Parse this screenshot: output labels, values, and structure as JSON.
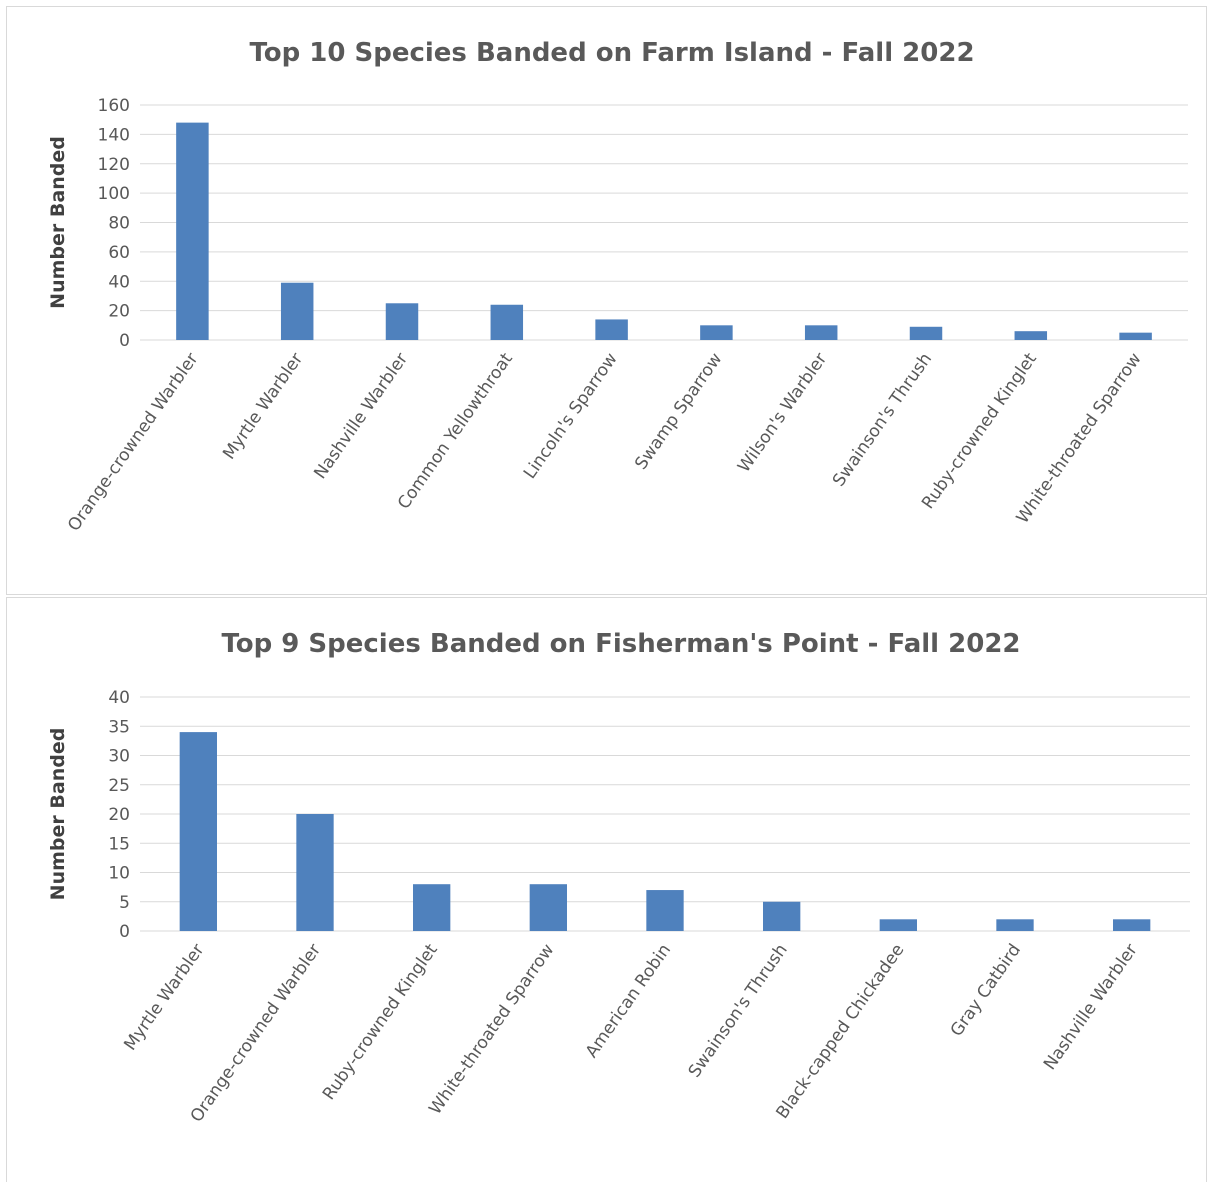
{
  "chart_data": [
    {
      "type": "bar",
      "title": "Top 10 Species Banded on Farm Island - Fall 2022",
      "xlabel": "",
      "ylabel": "Number Banded",
      "ylim": [
        0,
        160
      ],
      "yticks": [
        0,
        20,
        40,
        60,
        80,
        100,
        120,
        140,
        160
      ],
      "grid": true,
      "color": "#4f81bd",
      "categories": [
        "Orange-crowned Warbler",
        "Myrtle Warbler",
        "Nashville Warbler",
        "Common Yellowthroat",
        "Lincoln's Sparrow",
        "Swamp Sparrow",
        "Wilson's Warbler",
        "Swainson's Thrush",
        "Ruby-crowned Kinglet",
        "White-throated Sparrow"
      ],
      "values": [
        148,
        39,
        25,
        24,
        14,
        10,
        10,
        9,
        6,
        5
      ]
    },
    {
      "type": "bar",
      "title": "Top 9 Species Banded on Fisherman's Point - Fall 2022",
      "xlabel": "",
      "ylabel": "Number Banded",
      "ylim": [
        0,
        40
      ],
      "yticks": [
        0,
        5,
        10,
        15,
        20,
        25,
        30,
        35,
        40
      ],
      "grid": true,
      "color": "#4f81bd",
      "categories": [
        "Myrtle Warbler",
        "Orange-crowned Warbler",
        "Ruby-crowned Kinglet",
        "White-throated Sparrow",
        "American Robin",
        "Swainson's Thrush",
        "Black-capped Chickadee",
        "Gray Catbird",
        "Nashville Warbler"
      ],
      "values": [
        34,
        20,
        8,
        8,
        7,
        5,
        2,
        2,
        2
      ]
    }
  ]
}
